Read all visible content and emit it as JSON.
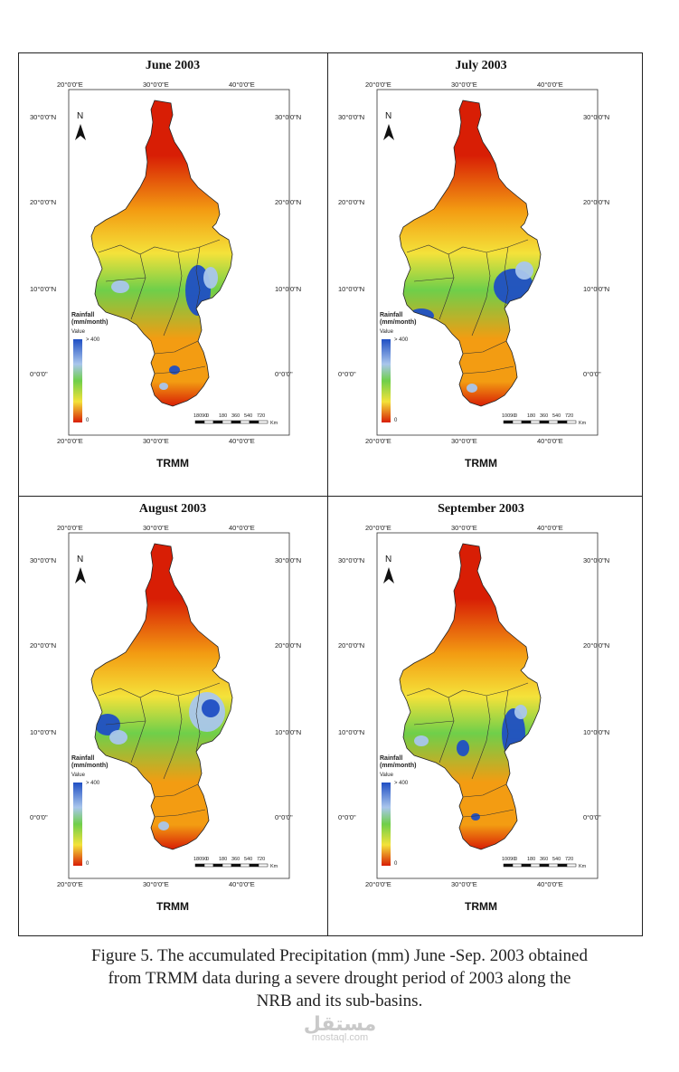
{
  "panels": [
    {
      "title": "June 2003",
      "source": "TRMM",
      "wet_zones": [
        "east-central highlands (very wet)",
        "small southern pockets"
      ],
      "ticks": {
        "top": [
          "20°0'0\"E",
          "30°0'0\"E",
          "40°0'0\"E"
        ],
        "bottom": [
          "20°0'0\"E",
          "30°0'0\"E",
          "40°0'0\"E"
        ],
        "left": [
          "30°0'0\"N",
          "20°0'0\"N",
          "10°0'0\"N",
          "0°0'0\""
        ],
        "right": [
          "30°0'0\"N",
          "20°0'0\"N",
          "10°0'0\"N",
          "0°0'0\""
        ]
      },
      "legend": {
        "title": "Rainfall\n(mm/month)",
        "value_label": "Value",
        "max_label": "> 400",
        "min_label": "0"
      },
      "scale": {
        "labels": [
          "18090",
          "0",
          "180",
          "360",
          "540",
          "720"
        ],
        "unit": "Km"
      }
    },
    {
      "title": "July 2003",
      "source": "TRMM",
      "wet_zones": [
        "east-central highlands (very wet)",
        "south-western area"
      ],
      "ticks": {
        "top": [
          "20°0'0\"E",
          "30°0'0\"E",
          "40°0'0\"E"
        ],
        "bottom": [
          "20°0'0\"E",
          "30°0'0\"E",
          "40°0'0\"E"
        ],
        "left": [
          "30°0'0\"N",
          "20°0'0\"N",
          "10°0'0\"N",
          "0°0'0\""
        ],
        "right": [
          "30°0'0\"N",
          "20°0'0\"N",
          "10°0'0\"N",
          "0°0'0\""
        ]
      },
      "legend": {
        "title": "Rainfall\n(mm/month)",
        "value_label": "Value",
        "max_label": "> 400",
        "min_label": "0"
      },
      "scale": {
        "labels": [
          "10090",
          "0",
          "180",
          "360",
          "540",
          "720"
        ],
        "unit": "Km"
      }
    },
    {
      "title": "August 2003",
      "source": "TRMM",
      "wet_zones": [
        "eastern highlands (wet)",
        "south-western area (very wet)"
      ],
      "ticks": {
        "top": [
          "20°0'0\"E",
          "30°0'0\"E",
          "40°0'0\"E"
        ],
        "bottom": [
          "20°0'0\"E",
          "30°0'0\"E",
          "40°0'0\"E"
        ],
        "left": [
          "30°0'0\"N",
          "20°0'0\"N",
          "10°0'0\"N",
          "0°0'0\""
        ],
        "right": [
          "30°0'0\"N",
          "20°0'0\"N",
          "10°0'0\"N",
          "0°0'0\""
        ]
      },
      "legend": {
        "title": "Rainfall\n(mm/month)",
        "value_label": "Value",
        "max_label": "> 400",
        "min_label": "0"
      },
      "scale": {
        "labels": [
          "18090",
          "0",
          "180",
          "360",
          "540",
          "720"
        ],
        "unit": "Km"
      }
    },
    {
      "title": "September 2003",
      "source": "TRMM",
      "wet_zones": [
        "east-central highlands (very wet)",
        "central pockets"
      ],
      "ticks": {
        "top": [
          "20°0'0\"E",
          "30°0'0\"E",
          "40°0'0\"E"
        ],
        "bottom": [
          "20°0'0\"E",
          "30°0'0\"E",
          "40°0'0\"E"
        ],
        "left": [
          "30°0'0\"N",
          "20°0'0\"N",
          "10°0'0\"N",
          "0°0'0\""
        ],
        "right": [
          "30°0'0\"N",
          "20°0'0\"N",
          "10°0'0\"N",
          "0°0'0\""
        ]
      },
      "legend": {
        "title": "Rainfall\n(mm/month)",
        "value_label": "Value",
        "max_label": "> 400",
        "min_label": "0"
      },
      "scale": {
        "labels": [
          "10090",
          "0",
          "180",
          "360",
          "540",
          "720"
        ],
        "unit": "Km"
      }
    }
  ],
  "north_label": "N",
  "colors": {
    "dry": "#d81e05",
    "orange": "#f39c12",
    "yellow": "#f4e23a",
    "green": "#6fcf4a",
    "wet": "#1f4fc4",
    "light_wet": "#a9c6ec"
  },
  "caption": {
    "line1": "Figure 5. The accumulated Precipitation (mm) June -Sep. 2003 obtained",
    "line2": "from TRMM data during a severe drought period of 2003 along the",
    "line3": "NRB and its sub-basins."
  },
  "watermark": {
    "arabic": "مستقل",
    "latin": "mostaql.com"
  }
}
